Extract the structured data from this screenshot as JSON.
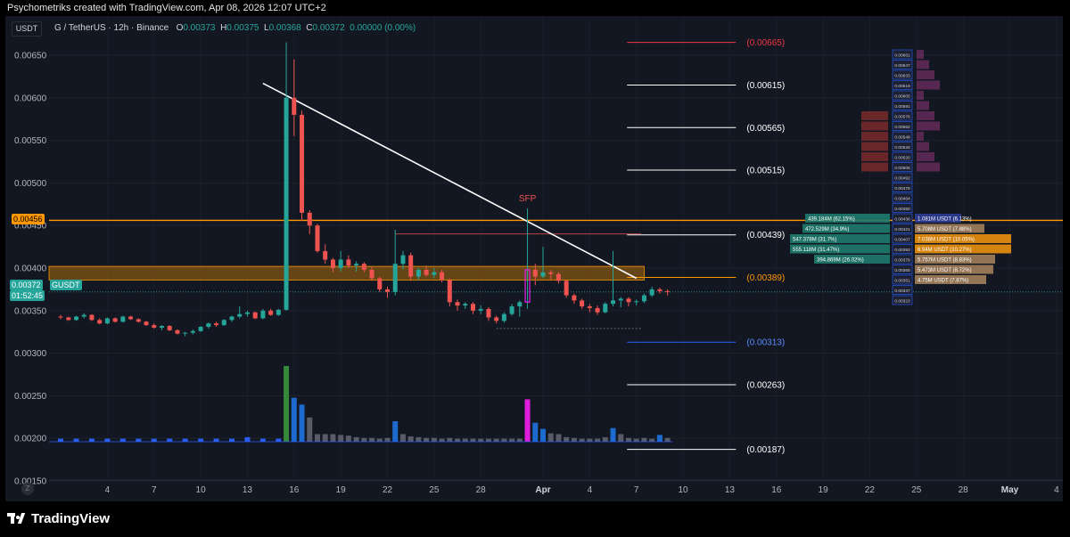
{
  "header": {
    "credit": "Psychometriks created with TradingView.com, Apr 08, 2026 12:07 UTC+2"
  },
  "symbol_bar": {
    "title": "G / TetherUS · 12h · Binance",
    "o_label": "O",
    "o": "0.00373",
    "h_label": "H",
    "h": "0.00375",
    "l_label": "L",
    "l": "0.00368",
    "c_label": "C",
    "c": "0.00372",
    "change": "0.00000 (0.00%)"
  },
  "currency_button": "USDT",
  "price_tags": {
    "level_456": "0.00456",
    "last_price": "0.00372",
    "ticker": "GUSDT",
    "countdown": "01:52:45"
  },
  "branding": {
    "logo_text": "TradingView"
  },
  "zoom_icon": "Z",
  "colors": {
    "background": "#131722",
    "up": "#26a69a",
    "down": "#ef5350",
    "sfp": "#ef5350",
    "orange_line": "#ff9800",
    "zone_fill": "#ff9800",
    "trendline": "#ffffff",
    "fib_red": "#f23645",
    "fib_blue": "#2962ff",
    "volume_highlight": "#e91ee8"
  },
  "chart_data": {
    "type": "candlestick",
    "timeframe": "12h",
    "ylim": [
      0.00126,
      0.00696
    ],
    "y_ticks": [
      "0.00650",
      "0.00600",
      "0.00550",
      "0.00500",
      "0.00450",
      "0.00400",
      "0.00350",
      "0.00300",
      "0.00250",
      "0.00200",
      "0.00150"
    ],
    "x_ticks": [
      "4",
      "7",
      "10",
      "13",
      "16",
      "19",
      "22",
      "25",
      "28",
      "Apr",
      "4",
      "7",
      "10",
      "13",
      "16",
      "19",
      "22",
      "25",
      "28",
      "May",
      "4"
    ],
    "x_tick_days": [
      4,
      7,
      10,
      13,
      16,
      19,
      22,
      25,
      28,
      32,
      35,
      38,
      41,
      44,
      47,
      50,
      53,
      56,
      59,
      62,
      65
    ],
    "candles": [
      [
        1.0,
        0.00343,
        0.00345,
        0.0034,
        0.00342
      ],
      [
        1.5,
        0.00342,
        0.00343,
        0.00338,
        0.00339
      ],
      [
        2.0,
        0.00339,
        0.00344,
        0.00338,
        0.00343
      ],
      [
        2.5,
        0.00343,
        0.00347,
        0.00341,
        0.00345
      ],
      [
        3.0,
        0.00345,
        0.00346,
        0.00338,
        0.00339
      ],
      [
        3.5,
        0.00339,
        0.00341,
        0.00334,
        0.00335
      ],
      [
        4.0,
        0.00335,
        0.00342,
        0.00334,
        0.00341
      ],
      [
        4.5,
        0.00341,
        0.00342,
        0.00336,
        0.00337
      ],
      [
        5.0,
        0.00337,
        0.00344,
        0.00336,
        0.00343
      ],
      [
        5.5,
        0.00343,
        0.00344,
        0.00339,
        0.0034
      ],
      [
        6.0,
        0.0034,
        0.00341,
        0.00336,
        0.00337
      ],
      [
        6.5,
        0.00337,
        0.00338,
        0.00332,
        0.00333
      ],
      [
        7.0,
        0.00333,
        0.00335,
        0.00329,
        0.0033
      ],
      [
        7.5,
        0.0033,
        0.00333,
        0.00327,
        0.00332
      ],
      [
        8.0,
        0.00332,
        0.00333,
        0.00326,
        0.00327
      ],
      [
        8.5,
        0.00327,
        0.00328,
        0.00322,
        0.00323
      ],
      [
        9.0,
        0.00323,
        0.00325,
        0.0032,
        0.00324
      ],
      [
        9.5,
        0.00324,
        0.00328,
        0.00322,
        0.00326
      ],
      [
        10.0,
        0.00326,
        0.00332,
        0.00325,
        0.00331
      ],
      [
        10.5,
        0.00331,
        0.00336,
        0.00329,
        0.00335
      ],
      [
        11.0,
        0.00335,
        0.00337,
        0.00331,
        0.00333
      ],
      [
        11.5,
        0.00333,
        0.0034,
        0.00332,
        0.00339
      ],
      [
        12.0,
        0.00339,
        0.00344,
        0.00337,
        0.00343
      ],
      [
        12.5,
        0.00343,
        0.00355,
        0.00341,
        0.00346
      ],
      [
        13.0,
        0.00346,
        0.0035,
        0.00343,
        0.00348
      ],
      [
        13.5,
        0.00348,
        0.00349,
        0.0034,
        0.00341
      ],
      [
        14.0,
        0.00341,
        0.00352,
        0.0034,
        0.0035
      ],
      [
        14.5,
        0.0035,
        0.00352,
        0.00344,
        0.00345
      ],
      [
        15.0,
        0.00345,
        0.00352,
        0.00344,
        0.00351
      ],
      [
        15.5,
        0.00351,
        0.00665,
        0.0035,
        0.006
      ],
      [
        16.0,
        0.006,
        0.00645,
        0.00555,
        0.0058
      ],
      [
        16.5,
        0.0058,
        0.00585,
        0.00455,
        0.00465
      ],
      [
        17.0,
        0.00465,
        0.00468,
        0.0044,
        0.0045
      ],
      [
        17.5,
        0.0045,
        0.00452,
        0.00418,
        0.0042
      ],
      [
        18.0,
        0.0042,
        0.00428,
        0.00405,
        0.0041
      ],
      [
        18.5,
        0.0041,
        0.00412,
        0.00395,
        0.004
      ],
      [
        19.0,
        0.004,
        0.0042,
        0.00396,
        0.0041
      ],
      [
        19.5,
        0.0041,
        0.00415,
        0.004,
        0.00403
      ],
      [
        20.0,
        0.00403,
        0.00408,
        0.00396,
        0.00405
      ],
      [
        20.5,
        0.00405,
        0.00407,
        0.00395,
        0.00398
      ],
      [
        21.0,
        0.00398,
        0.00402,
        0.00385,
        0.00388
      ],
      [
        21.5,
        0.00388,
        0.0039,
        0.00372,
        0.00375
      ],
      [
        22.0,
        0.00375,
        0.00378,
        0.00365,
        0.00372
      ],
      [
        22.5,
        0.00372,
        0.00445,
        0.00368,
        0.00405
      ],
      [
        23.0,
        0.00405,
        0.0042,
        0.00398,
        0.00415
      ],
      [
        23.5,
        0.00415,
        0.00418,
        0.00385,
        0.0039
      ],
      [
        24.0,
        0.0039,
        0.004,
        0.00386,
        0.00398
      ],
      [
        24.5,
        0.00398,
        0.00403,
        0.0039,
        0.00392
      ],
      [
        25.0,
        0.00392,
        0.004,
        0.00388,
        0.00395
      ],
      [
        25.5,
        0.00395,
        0.00398,
        0.00383,
        0.00386
      ],
      [
        26.0,
        0.00386,
        0.00388,
        0.00355,
        0.0036
      ],
      [
        26.5,
        0.0036,
        0.00363,
        0.0035,
        0.00356
      ],
      [
        27.0,
        0.00356,
        0.0036,
        0.00352,
        0.00358
      ],
      [
        27.5,
        0.00358,
        0.0036,
        0.00346,
        0.0035
      ],
      [
        28.0,
        0.0035,
        0.00356,
        0.00346,
        0.00352
      ],
      [
        28.5,
        0.00352,
        0.00354,
        0.00338,
        0.00342
      ],
      [
        29.0,
        0.00342,
        0.00344,
        0.00335,
        0.00338
      ],
      [
        29.5,
        0.00338,
        0.00348,
        0.00336,
        0.00346
      ],
      [
        30.0,
        0.00346,
        0.00358,
        0.00344,
        0.00355
      ],
      [
        30.5,
        0.00355,
        0.00362,
        0.00343,
        0.0036
      ],
      [
        31.0,
        0.0036,
        0.0047,
        0.00352,
        0.00398
      ],
      [
        31.5,
        0.00398,
        0.00405,
        0.0038,
        0.0039
      ],
      [
        32.0,
        0.0039,
        0.00425,
        0.00388,
        0.00395
      ],
      [
        32.5,
        0.00395,
        0.00398,
        0.00386,
        0.00393
      ],
      [
        33.0,
        0.00393,
        0.00395,
        0.00382,
        0.00385
      ],
      [
        33.5,
        0.00385,
        0.00386,
        0.00365,
        0.00368
      ],
      [
        34.0,
        0.00368,
        0.0037,
        0.00358,
        0.00362
      ],
      [
        34.5,
        0.00362,
        0.00364,
        0.00352,
        0.00355
      ],
      [
        35.0,
        0.00355,
        0.00358,
        0.00348,
        0.00353
      ],
      [
        35.5,
        0.00353,
        0.00356,
        0.00345,
        0.00348
      ],
      [
        36.0,
        0.00348,
        0.0036,
        0.00347,
        0.00358
      ],
      [
        36.5,
        0.00358,
        0.0042,
        0.00355,
        0.00362
      ],
      [
        37.0,
        0.00362,
        0.00366,
        0.00354,
        0.00364
      ],
      [
        37.5,
        0.00364,
        0.00366,
        0.00355,
        0.0036
      ],
      [
        38.0,
        0.0036,
        0.00363,
        0.00356,
        0.00361
      ],
      [
        38.5,
        0.00361,
        0.0037,
        0.00359,
        0.00368
      ],
      [
        39.0,
        0.00368,
        0.00378,
        0.00366,
        0.00375
      ],
      [
        39.5,
        0.00375,
        0.00377,
        0.0037,
        0.00373
      ],
      [
        40.0,
        0.00373,
        0.00375,
        0.00368,
        0.00372
      ]
    ],
    "special_candles": [
      {
        "day": 31.0,
        "label": "SFP",
        "color": "magenta-outline"
      }
    ],
    "volume": [
      [
        1,
        4
      ],
      [
        2,
        4
      ],
      [
        3,
        4
      ],
      [
        4,
        4
      ],
      [
        5,
        4
      ],
      [
        6,
        4
      ],
      [
        7,
        4
      ],
      [
        8,
        4
      ],
      [
        9,
        4
      ],
      [
        10,
        4
      ],
      [
        11,
        4
      ],
      [
        12,
        4
      ],
      [
        13,
        6
      ],
      [
        14,
        4
      ],
      [
        15,
        4
      ],
      [
        15.5,
        100
      ],
      [
        16,
        58
      ],
      [
        16.5,
        49
      ],
      [
        17,
        32
      ],
      [
        17.5,
        10
      ],
      [
        18,
        10
      ],
      [
        18.5,
        10
      ],
      [
        19,
        9
      ],
      [
        19.5,
        8
      ],
      [
        20,
        6
      ],
      [
        20.5,
        5
      ],
      [
        21,
        5
      ],
      [
        21.5,
        4
      ],
      [
        22,
        5
      ],
      [
        22.5,
        27
      ],
      [
        23,
        10
      ],
      [
        23.5,
        7
      ],
      [
        24,
        6
      ],
      [
        24.5,
        5
      ],
      [
        25,
        5
      ],
      [
        25.5,
        4
      ],
      [
        26,
        5
      ],
      [
        26.5,
        4
      ],
      [
        27,
        4
      ],
      [
        27.5,
        4
      ],
      [
        28,
        4
      ],
      [
        28.5,
        4
      ],
      [
        29,
        4
      ],
      [
        29.5,
        4
      ],
      [
        30,
        4
      ],
      [
        30.5,
        4
      ],
      [
        31,
        56
      ],
      [
        31.5,
        25
      ],
      [
        32,
        17
      ],
      [
        32.5,
        11
      ],
      [
        33,
        10
      ],
      [
        33.5,
        6
      ],
      [
        34,
        5
      ],
      [
        34.5,
        4
      ],
      [
        35,
        4
      ],
      [
        35.5,
        4
      ],
      [
        36,
        6
      ],
      [
        36.5,
        18
      ],
      [
        37,
        10
      ],
      [
        37.5,
        5
      ],
      [
        38,
        4
      ],
      [
        38.5,
        5
      ],
      [
        39,
        4
      ],
      [
        39.5,
        9
      ],
      [
        40,
        5
      ]
    ],
    "horizontal_levels": [
      {
        "price": 0.00456,
        "label": "0.00456",
        "color": "orange"
      },
      {
        "price": 0.00665,
        "label": "(0.00665)",
        "color": "red"
      },
      {
        "price": 0.00615,
        "label": "(0.00615)",
        "color": "white"
      },
      {
        "price": 0.00565,
        "label": "(0.00565)",
        "color": "white"
      },
      {
        "price": 0.00515,
        "label": "(0.00515)",
        "color": "white"
      },
      {
        "price": 0.00439,
        "label": "(0.00439)",
        "color": "white"
      },
      {
        "price": 0.00389,
        "label": "(0.00389)",
        "color": "orange"
      },
      {
        "price": 0.00313,
        "label": "(0.00313)",
        "color": "blue"
      },
      {
        "price": 0.00263,
        "label": "(0.00263)",
        "color": "white"
      },
      {
        "price": 0.00187,
        "label": "(0.00187)",
        "color": "white"
      }
    ],
    "zone": {
      "price_top": 0.00402,
      "price_bottom": 0.00386
    },
    "trendline": {
      "from": [
        14.0,
        0.00617
      ],
      "to": [
        38.0,
        0.00388
      ]
    },
    "sfp_line": {
      "price": 0.0044,
      "from_day": 22.5,
      "to_day": 38.3
    },
    "support_line": {
      "price": 0.00329,
      "from_day": 29.0,
      "to_day": 38.3
    },
    "order_book": {
      "price_column": [
        "0.00661",
        "0.00647",
        "0.00633",
        "0.00619",
        "0.00605",
        "0.00591",
        "0.00576",
        "0.00562",
        "0.00548",
        "0.00534",
        "0.00520",
        "0.00506",
        "0.00492",
        "0.00478",
        "0.00464",
        "0.00450",
        "0.00436",
        "0.00421",
        "0.00407",
        "0.00393",
        "0.00379",
        "0.00365",
        "0.00351",
        "0.00337",
        "0.00323"
      ],
      "left_bids": [
        {
          "price": "0.00436",
          "text": "439.184M (62.15%)"
        },
        {
          "price": "0.00421",
          "text": "472.529M (34.9%)"
        },
        {
          "price": "0.00407",
          "text": "547.378M (31.7%)"
        },
        {
          "price": "0.00393",
          "text": "555.118M (31.47%)"
        },
        {
          "price": "0.00379",
          "text": "394.869M (26.02%)"
        }
      ],
      "right_asks": [
        {
          "price": "0.00436",
          "text": "1.081M USDT (6.13%)"
        },
        {
          "price": "0.00421",
          "text": "5.708M USDT (7.88%)"
        },
        {
          "price": "0.00407",
          "text": "7.038M USDT (10.05%)"
        },
        {
          "price": "0.00393",
          "text": "6.94M USDT (10.27%)"
        },
        {
          "price": "0.00379",
          "text": "5.757M USDT (8.83%)"
        },
        {
          "price": "0.00365",
          "text": "5.473M USDT (8.72%)"
        },
        {
          "price": "0.00351",
          "text": "4.75M USDT (7.87%)"
        }
      ]
    }
  }
}
